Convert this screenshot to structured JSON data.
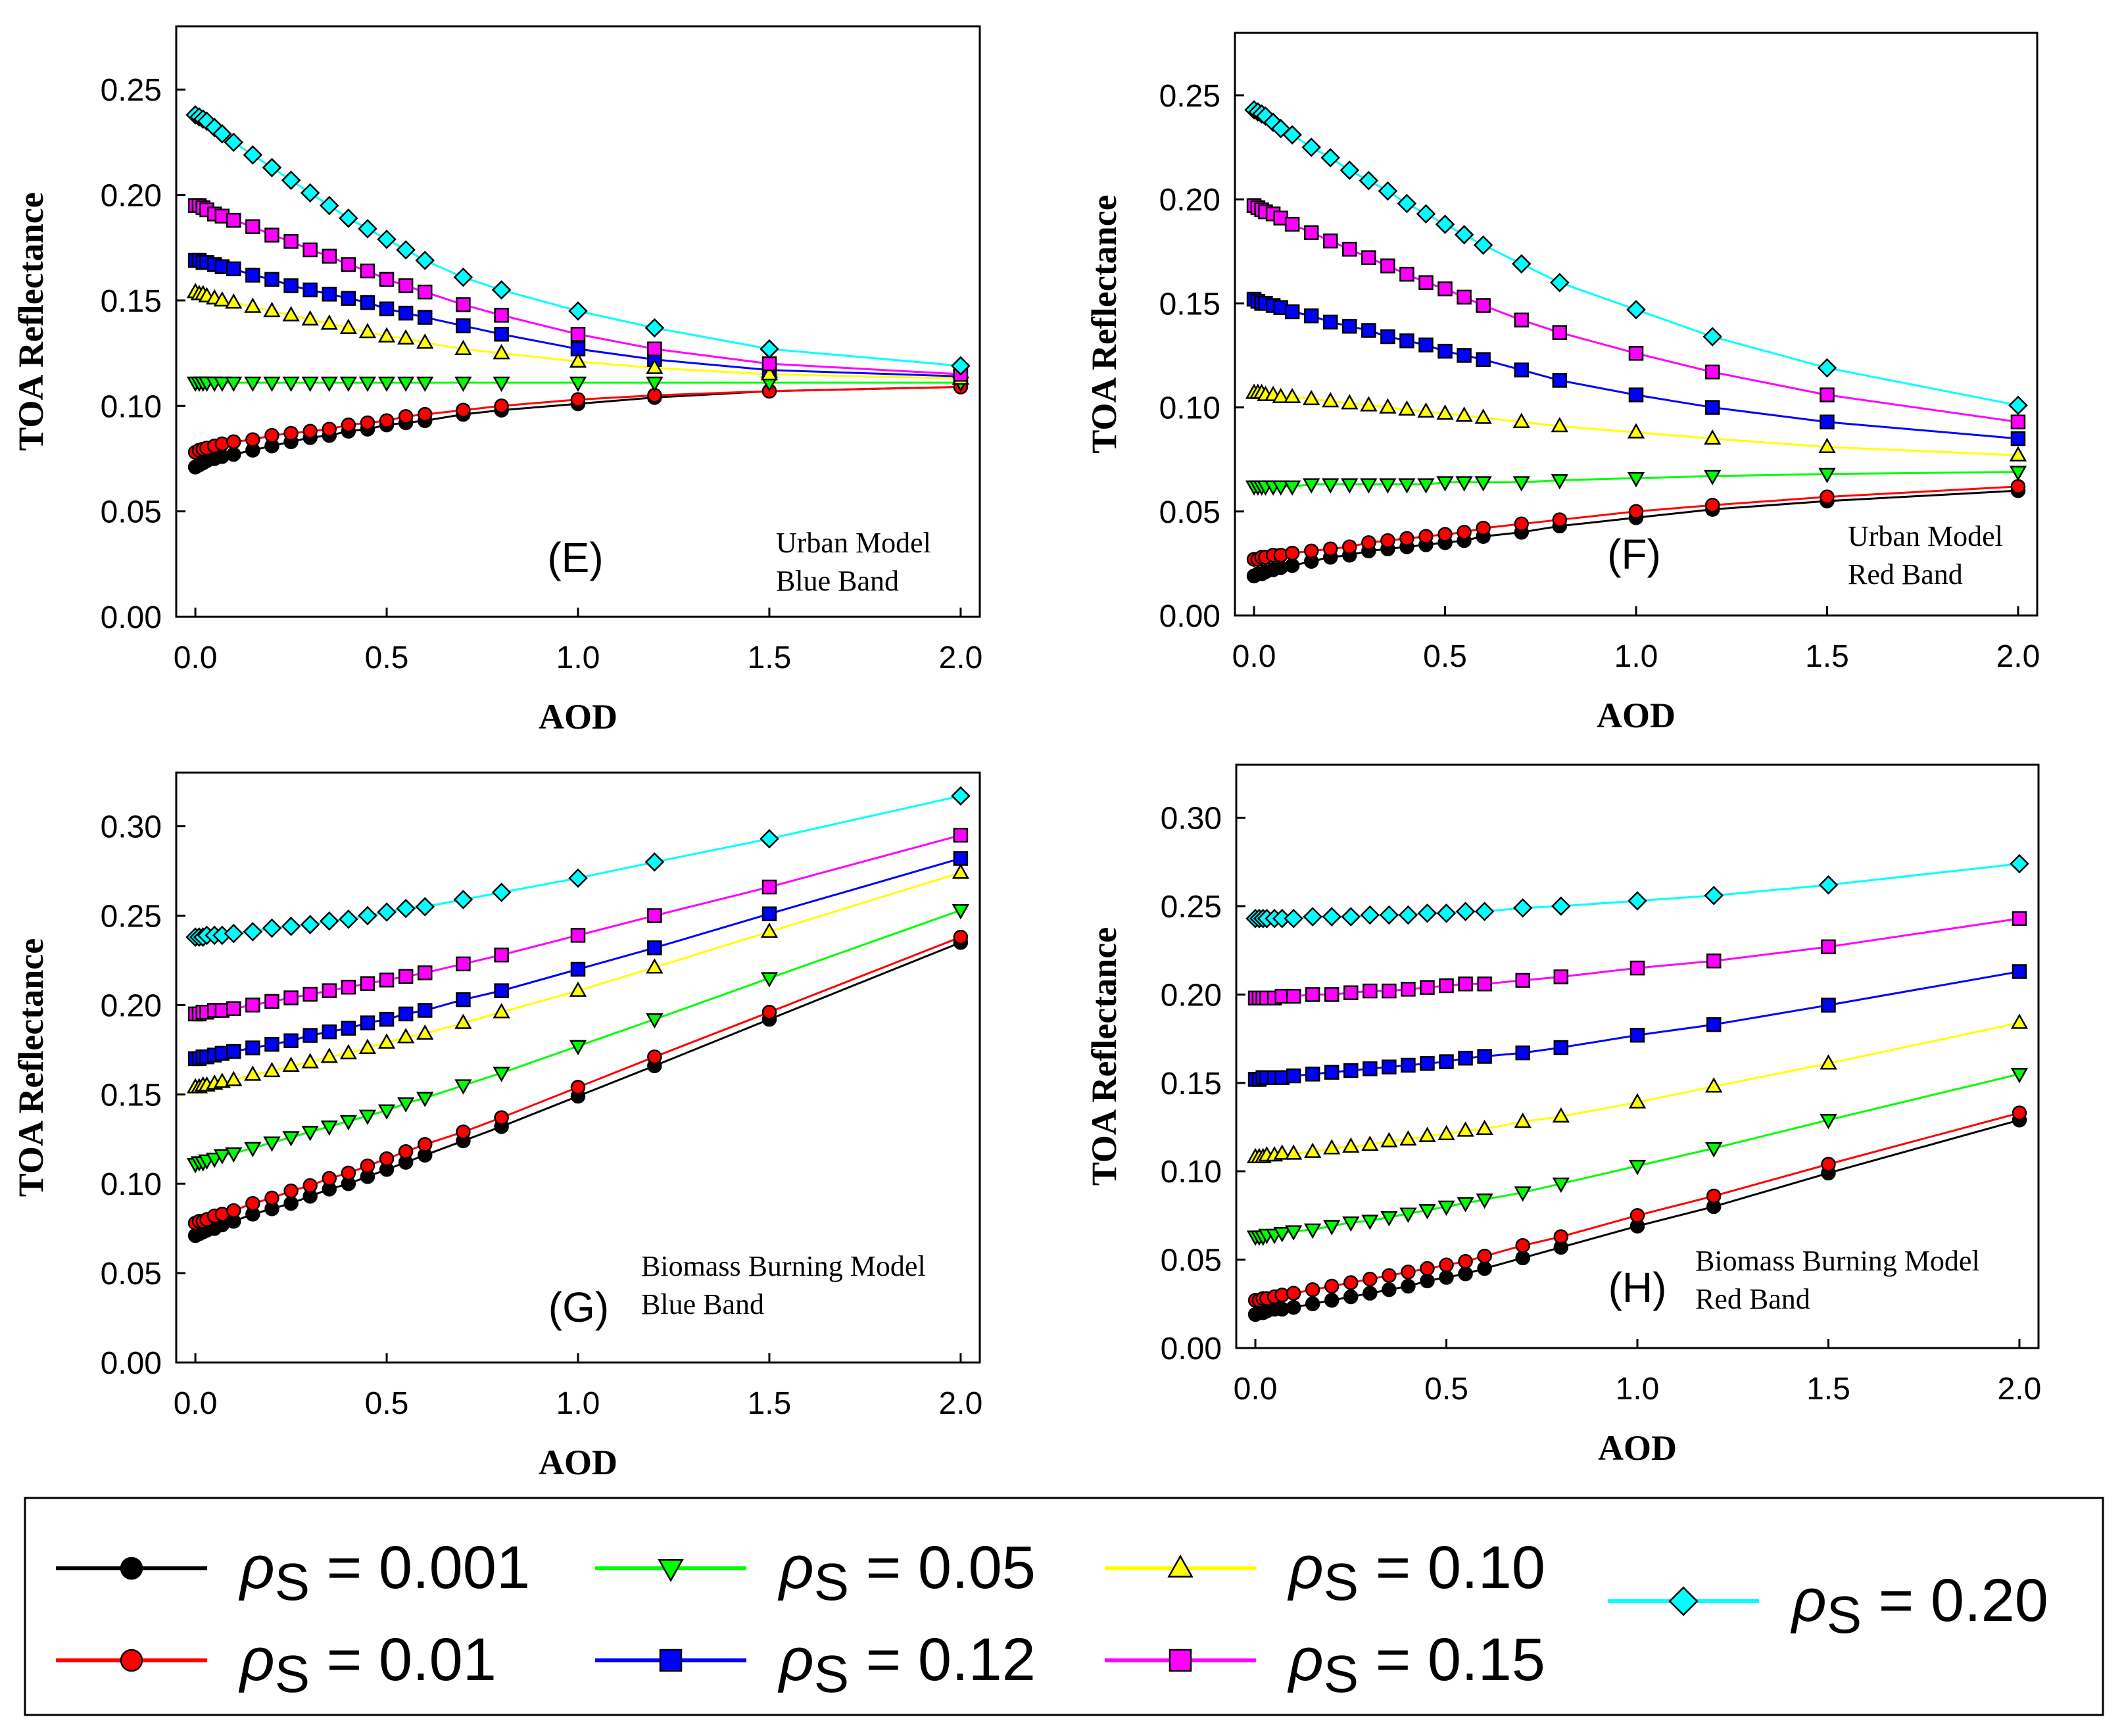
{
  "x": [
    0.0,
    0.01,
    0.02,
    0.03,
    0.05,
    0.07,
    0.1,
    0.15,
    0.2,
    0.25,
    0.3,
    0.35,
    0.4,
    0.45,
    0.5,
    0.55,
    0.6,
    0.7,
    0.8,
    1.0,
    1.2,
    1.5,
    2.0
  ],
  "series_styles": [
    {
      "key": "s0",
      "color": "#000000",
      "marker": "circle"
    },
    {
      "key": "s1",
      "color": "#ff0000",
      "marker": "circle"
    },
    {
      "key": "s2",
      "color": "#00ff00",
      "marker": "triangle-down"
    },
    {
      "key": "s3",
      "color": "#0000ff",
      "marker": "square"
    },
    {
      "key": "s4",
      "color": "#ffff00",
      "marker": "triangle-up"
    },
    {
      "key": "s5",
      "color": "#ff00ff",
      "marker": "square"
    },
    {
      "key": "s6",
      "color": "#00ffff",
      "marker": "diamond"
    }
  ],
  "chart_data": [
    {
      "type": "line",
      "panel": "(E)",
      "annotation": [
        "Urban Model",
        "Blue Band"
      ],
      "xlabel": "AOD",
      "ylabel": "TOA Reflectance",
      "xlim": [
        -0.05,
        2.05
      ],
      "ylim": [
        0.0,
        0.28
      ],
      "xticks": [
        "0.0",
        "0.5",
        "1.0",
        "1.5",
        "2.0"
      ],
      "yticks": [
        "0.00",
        "0.05",
        "0.10",
        "0.15",
        "0.20",
        "0.25"
      ],
      "series": [
        {
          "name": "ρs = 0.001",
          "values": [
            0.071,
            0.072,
            0.073,
            0.074,
            0.075,
            0.076,
            0.077,
            0.079,
            0.081,
            0.083,
            0.085,
            0.086,
            0.088,
            0.089,
            0.091,
            0.092,
            0.093,
            0.096,
            0.098,
            0.101,
            0.104,
            0.107,
            0.109
          ]
        },
        {
          "name": "ρs = 0.01",
          "values": [
            0.078,
            0.079,
            0.0795,
            0.08,
            0.081,
            0.082,
            0.083,
            0.084,
            0.086,
            0.087,
            0.088,
            0.089,
            0.091,
            0.092,
            0.093,
            0.095,
            0.096,
            0.098,
            0.1,
            0.103,
            0.105,
            0.107,
            0.109
          ]
        },
        {
          "name": "ρs = 0.05",
          "values": [
            0.111,
            0.111,
            0.111,
            0.111,
            0.111,
            0.111,
            0.111,
            0.111,
            0.111,
            0.111,
            0.111,
            0.111,
            0.111,
            0.111,
            0.111,
            0.111,
            0.111,
            0.111,
            0.111,
            0.111,
            0.111,
            0.111,
            0.111
          ]
        },
        {
          "name": "ρs = 0.12",
          "values": [
            0.169,
            0.169,
            0.168,
            0.168,
            0.167,
            0.166,
            0.165,
            0.162,
            0.16,
            0.157,
            0.155,
            0.153,
            0.151,
            0.149,
            0.146,
            0.144,
            0.142,
            0.138,
            0.134,
            0.127,
            0.122,
            0.117,
            0.114
          ]
        },
        {
          "name": "ρs = 0.10",
          "values": [
            0.154,
            0.153,
            0.153,
            0.152,
            0.151,
            0.15,
            0.149,
            0.147,
            0.145,
            0.143,
            0.141,
            0.139,
            0.137,
            0.135,
            0.133,
            0.132,
            0.13,
            0.127,
            0.125,
            0.121,
            0.118,
            0.115,
            0.113
          ]
        },
        {
          "name": "ρs = 0.15",
          "values": [
            0.195,
            0.195,
            0.194,
            0.193,
            0.191,
            0.19,
            0.188,
            0.185,
            0.181,
            0.178,
            0.174,
            0.171,
            0.167,
            0.164,
            0.16,
            0.157,
            0.154,
            0.148,
            0.143,
            0.134,
            0.127,
            0.12,
            0.115
          ]
        },
        {
          "name": "ρs = 0.20",
          "values": [
            0.238,
            0.237,
            0.236,
            0.235,
            0.232,
            0.229,
            0.225,
            0.219,
            0.213,
            0.207,
            0.201,
            0.195,
            0.189,
            0.184,
            0.179,
            0.174,
            0.169,
            0.161,
            0.155,
            0.145,
            0.137,
            0.127,
            0.119
          ]
        }
      ]
    },
    {
      "type": "line",
      "panel": "(F)",
      "annotation": [
        "Urban Model",
        "Red Band"
      ],
      "xlabel": "AOD",
      "ylabel": "TOA Reflectance",
      "xlim": [
        -0.05,
        2.05
      ],
      "ylim": [
        0.0,
        0.28
      ],
      "xticks": [
        "0.0",
        "0.5",
        "1.0",
        "1.5",
        "2.0"
      ],
      "yticks": [
        "0.00",
        "0.05",
        "0.10",
        "0.15",
        "0.20",
        "0.25"
      ],
      "series": [
        {
          "name": "ρs = 0.001",
          "values": [
            0.019,
            0.02,
            0.02,
            0.021,
            0.022,
            0.023,
            0.024,
            0.026,
            0.028,
            0.029,
            0.031,
            0.032,
            0.033,
            0.034,
            0.035,
            0.036,
            0.038,
            0.04,
            0.043,
            0.047,
            0.051,
            0.055,
            0.06
          ]
        },
        {
          "name": "ρs = 0.01",
          "values": [
            0.027,
            0.027,
            0.028,
            0.028,
            0.029,
            0.029,
            0.03,
            0.031,
            0.032,
            0.033,
            0.035,
            0.036,
            0.037,
            0.038,
            0.039,
            0.04,
            0.042,
            0.044,
            0.046,
            0.05,
            0.053,
            0.057,
            0.062
          ]
        },
        {
          "name": "ρs = 0.05",
          "values": [
            0.062,
            0.062,
            0.062,
            0.062,
            0.062,
            0.062,
            0.062,
            0.063,
            0.063,
            0.063,
            0.063,
            0.063,
            0.063,
            0.063,
            0.064,
            0.064,
            0.064,
            0.064,
            0.065,
            0.066,
            0.067,
            0.068,
            0.069
          ]
        },
        {
          "name": "ρs = 0.12",
          "values": [
            0.152,
            0.151,
            0.15,
            0.15,
            0.149,
            0.148,
            0.146,
            0.144,
            0.141,
            0.139,
            0.137,
            0.134,
            0.132,
            0.13,
            0.127,
            0.125,
            0.123,
            0.118,
            0.113,
            0.106,
            0.1,
            0.093,
            0.085
          ]
        },
        {
          "name": "ρs = 0.10",
          "values": [
            0.107,
            0.107,
            0.107,
            0.106,
            0.106,
            0.105,
            0.105,
            0.104,
            0.103,
            0.102,
            0.101,
            0.1,
            0.099,
            0.098,
            0.097,
            0.096,
            0.095,
            0.093,
            0.091,
            0.088,
            0.085,
            0.081,
            0.077
          ]
        },
        {
          "name": "ρs = 0.15",
          "values": [
            0.197,
            0.196,
            0.195,
            0.194,
            0.193,
            0.191,
            0.188,
            0.184,
            0.18,
            0.176,
            0.172,
            0.168,
            0.164,
            0.16,
            0.157,
            0.153,
            0.149,
            0.142,
            0.136,
            0.126,
            0.117,
            0.106,
            0.093
          ]
        },
        {
          "name": "ρs = 0.20",
          "values": [
            0.243,
            0.242,
            0.241,
            0.24,
            0.237,
            0.234,
            0.231,
            0.225,
            0.22,
            0.214,
            0.209,
            0.204,
            0.198,
            0.193,
            0.188,
            0.183,
            0.178,
            0.169,
            0.16,
            0.147,
            0.134,
            0.119,
            0.101
          ]
        }
      ]
    },
    {
      "type": "line",
      "panel": "(G)",
      "annotation": [
        "Biomass Burning Model",
        "Blue Band"
      ],
      "xlabel": "AOD",
      "ylabel": "TOA Reflectance",
      "xlim": [
        -0.05,
        2.05
      ],
      "ylim": [
        0.0,
        0.33
      ],
      "xticks": [
        "0.0",
        "0.5",
        "1.0",
        "1.5",
        "2.0"
      ],
      "yticks": [
        "0.00",
        "0.05",
        "0.10",
        "0.15",
        "0.20",
        "0.25",
        "0.30"
      ],
      "series": [
        {
          "name": "ρs = 0.001",
          "values": [
            0.071,
            0.072,
            0.073,
            0.074,
            0.075,
            0.077,
            0.079,
            0.083,
            0.086,
            0.089,
            0.093,
            0.097,
            0.1,
            0.104,
            0.108,
            0.112,
            0.116,
            0.124,
            0.132,
            0.149,
            0.166,
            0.192,
            0.235
          ]
        },
        {
          "name": "ρs = 0.01",
          "values": [
            0.078,
            0.079,
            0.079,
            0.08,
            0.082,
            0.083,
            0.085,
            0.089,
            0.092,
            0.096,
            0.099,
            0.103,
            0.106,
            0.11,
            0.114,
            0.118,
            0.122,
            0.129,
            0.137,
            0.154,
            0.171,
            0.196,
            0.238
          ]
        },
        {
          "name": "ρs = 0.05",
          "values": [
            0.111,
            0.112,
            0.112,
            0.113,
            0.114,
            0.116,
            0.117,
            0.12,
            0.123,
            0.126,
            0.129,
            0.132,
            0.135,
            0.138,
            0.141,
            0.145,
            0.148,
            0.155,
            0.162,
            0.177,
            0.192,
            0.215,
            0.253
          ]
        },
        {
          "name": "ρs = 0.12",
          "values": [
            0.17,
            0.17,
            0.171,
            0.171,
            0.172,
            0.173,
            0.174,
            0.176,
            0.178,
            0.18,
            0.183,
            0.185,
            0.187,
            0.19,
            0.192,
            0.195,
            0.197,
            0.203,
            0.208,
            0.22,
            0.232,
            0.251,
            0.282
          ]
        },
        {
          "name": "ρs = 0.10",
          "values": [
            0.154,
            0.154,
            0.155,
            0.155,
            0.156,
            0.157,
            0.158,
            0.161,
            0.163,
            0.166,
            0.168,
            0.171,
            0.173,
            0.176,
            0.179,
            0.182,
            0.184,
            0.19,
            0.196,
            0.208,
            0.221,
            0.241,
            0.274
          ]
        },
        {
          "name": "ρs = 0.15",
          "values": [
            0.195,
            0.195,
            0.196,
            0.196,
            0.197,
            0.197,
            0.198,
            0.2,
            0.202,
            0.204,
            0.206,
            0.208,
            0.21,
            0.212,
            0.214,
            0.216,
            0.218,
            0.223,
            0.228,
            0.239,
            0.25,
            0.266,
            0.295
          ]
        },
        {
          "name": "ρs = 0.20",
          "values": [
            0.238,
            0.238,
            0.238,
            0.239,
            0.239,
            0.239,
            0.24,
            0.241,
            0.243,
            0.244,
            0.245,
            0.247,
            0.248,
            0.25,
            0.252,
            0.254,
            0.255,
            0.259,
            0.263,
            0.271,
            0.28,
            0.293,
            0.317
          ]
        }
      ]
    },
    {
      "type": "line",
      "panel": "(H)",
      "annotation": [
        "Biomass Burning Model",
        "Red Band"
      ],
      "xlabel": "AOD",
      "ylabel": "TOA Reflectance",
      "xlim": [
        -0.05,
        2.05
      ],
      "ylim": [
        0.0,
        0.33
      ],
      "xticks": [
        "0.0",
        "0.5",
        "1.0",
        "1.5",
        "2.0"
      ],
      "yticks": [
        "0.00",
        "0.05",
        "0.10",
        "0.15",
        "0.20",
        "0.25",
        "0.30"
      ],
      "series": [
        {
          "name": "ρs = 0.001",
          "values": [
            0.019,
            0.02,
            0.02,
            0.021,
            0.022,
            0.022,
            0.023,
            0.025,
            0.027,
            0.029,
            0.031,
            0.033,
            0.035,
            0.038,
            0.04,
            0.042,
            0.045,
            0.051,
            0.057,
            0.069,
            0.08,
            0.099,
            0.129
          ]
        },
        {
          "name": "ρs = 0.01",
          "values": [
            0.027,
            0.027,
            0.028,
            0.028,
            0.029,
            0.03,
            0.031,
            0.033,
            0.035,
            0.037,
            0.039,
            0.041,
            0.043,
            0.045,
            0.047,
            0.049,
            0.052,
            0.058,
            0.063,
            0.075,
            0.086,
            0.104,
            0.133
          ]
        },
        {
          "name": "ρs = 0.05",
          "values": [
            0.063,
            0.063,
            0.063,
            0.064,
            0.064,
            0.065,
            0.066,
            0.067,
            0.069,
            0.071,
            0.072,
            0.074,
            0.076,
            0.078,
            0.08,
            0.082,
            0.084,
            0.088,
            0.093,
            0.103,
            0.113,
            0.129,
            0.155
          ]
        },
        {
          "name": "ρs = 0.12",
          "values": [
            0.152,
            0.152,
            0.153,
            0.153,
            0.153,
            0.153,
            0.154,
            0.155,
            0.156,
            0.157,
            0.158,
            0.159,
            0.16,
            0.161,
            0.162,
            0.164,
            0.165,
            0.167,
            0.17,
            0.177,
            0.183,
            0.194,
            0.213
          ]
        },
        {
          "name": "ρs = 0.10",
          "values": [
            0.108,
            0.108,
            0.108,
            0.109,
            0.109,
            0.11,
            0.11,
            0.111,
            0.113,
            0.114,
            0.115,
            0.117,
            0.118,
            0.12,
            0.121,
            0.123,
            0.124,
            0.128,
            0.131,
            0.139,
            0.148,
            0.161,
            0.184
          ]
        },
        {
          "name": "ρs = 0.15",
          "values": [
            0.198,
            0.198,
            0.198,
            0.198,
            0.198,
            0.199,
            0.199,
            0.2,
            0.2,
            0.201,
            0.202,
            0.202,
            0.203,
            0.204,
            0.205,
            0.206,
            0.206,
            0.208,
            0.21,
            0.215,
            0.219,
            0.227,
            0.243
          ]
        },
        {
          "name": "ρs = 0.20",
          "values": [
            0.243,
            0.243,
            0.243,
            0.243,
            0.243,
            0.243,
            0.243,
            0.244,
            0.244,
            0.244,
            0.245,
            0.245,
            0.245,
            0.246,
            0.246,
            0.247,
            0.247,
            0.249,
            0.25,
            0.253,
            0.256,
            0.262,
            0.274
          ]
        }
      ]
    }
  ],
  "legend": {
    "items": [
      {
        "key": "s0",
        "label_symbol": "ρ",
        "label_sub": "S",
        "label_value": " = 0.001"
      },
      {
        "key": "s1",
        "label_symbol": "ρ",
        "label_sub": "S",
        "label_value": " = 0.01"
      },
      {
        "key": "s2",
        "label_symbol": "ρ",
        "label_sub": "S",
        "label_value": " = 0.05"
      },
      {
        "key": "s3",
        "label_symbol": "ρ",
        "label_sub": "S",
        "label_value": " = 0.12"
      },
      {
        "key": "s4",
        "label_symbol": "ρ",
        "label_sub": "S",
        "label_value": " = 0.10"
      },
      {
        "key": "s5",
        "label_symbol": "ρ",
        "label_sub": "S",
        "label_value": " = 0.15"
      },
      {
        "key": "s6",
        "label_symbol": "ρ",
        "label_sub": "S",
        "label_value": " = 0.20"
      }
    ]
  }
}
